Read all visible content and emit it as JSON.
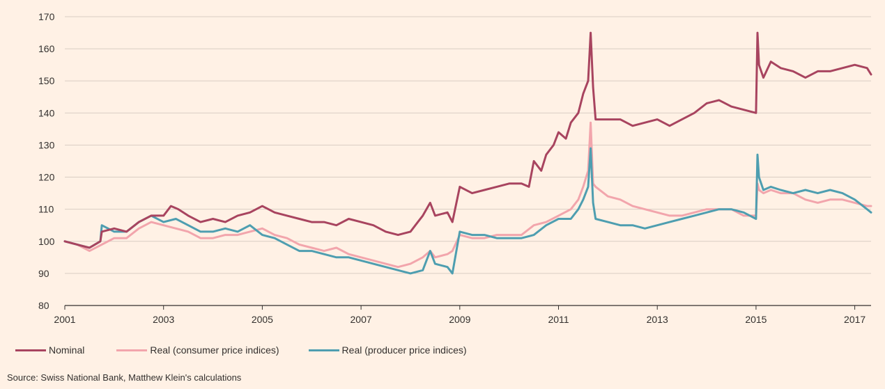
{
  "chart_data": {
    "type": "line",
    "title": "",
    "xlabel": "",
    "ylabel": "",
    "ylim": [
      80,
      170
    ],
    "xlim": [
      2001.0,
      2017.33
    ],
    "y_ticks": [
      80,
      90,
      100,
      110,
      120,
      130,
      140,
      150,
      160,
      170
    ],
    "x_ticks": [
      2001,
      2003,
      2005,
      2007,
      2009,
      2011,
      2013,
      2015,
      2017
    ],
    "grid": "horizontal",
    "legend": "bottom-left",
    "source": "Source: Swiss National Bank, Matthew Klein's calculations",
    "series": [
      {
        "name": "Nominal",
        "color": "#a8445f",
        "x": [
          2001.0,
          2001.25,
          2001.5,
          2001.72,
          2001.75,
          2002.0,
          2002.25,
          2002.5,
          2002.75,
          2003.0,
          2003.15,
          2003.3,
          2003.5,
          2003.75,
          2004.0,
          2004.25,
          2004.5,
          2004.75,
          2005.0,
          2005.25,
          2005.5,
          2005.75,
          2006.0,
          2006.25,
          2006.5,
          2006.75,
          2007.0,
          2007.25,
          2007.5,
          2007.75,
          2008.0,
          2008.15,
          2008.25,
          2008.4,
          2008.5,
          2008.75,
          2008.85,
          2009.0,
          2009.25,
          2009.5,
          2009.75,
          2010.0,
          2010.25,
          2010.4,
          2010.5,
          2010.65,
          2010.75,
          2010.9,
          2011.0,
          2011.15,
          2011.25,
          2011.4,
          2011.5,
          2011.6,
          2011.65,
          2011.7,
          2011.75,
          2012.0,
          2012.25,
          2012.5,
          2012.75,
          2013.0,
          2013.25,
          2013.5,
          2013.75,
          2014.0,
          2014.25,
          2014.5,
          2014.75,
          2015.0,
          2015.03,
          2015.06,
          2015.15,
          2015.3,
          2015.5,
          2015.75,
          2016.0,
          2016.25,
          2016.5,
          2016.75,
          2017.0,
          2017.25,
          2017.33
        ],
        "y": [
          100,
          99,
          98,
          100,
          103,
          104,
          103,
          106,
          108,
          108,
          111,
          110,
          108,
          106,
          107,
          106,
          108,
          109,
          111,
          109,
          108,
          107,
          106,
          106,
          105,
          107,
          106,
          105,
          103,
          102,
          103,
          106,
          108,
          112,
          108,
          109,
          106,
          117,
          115,
          116,
          117,
          118,
          118,
          117,
          125,
          122,
          127,
          130,
          134,
          132,
          137,
          140,
          146,
          150,
          165,
          148,
          138,
          138,
          138,
          136,
          137,
          138,
          136,
          138,
          140,
          143,
          144,
          142,
          141,
          140,
          165,
          155,
          151,
          156,
          154,
          153,
          151,
          153,
          153,
          154,
          155,
          154,
          152
        ]
      },
      {
        "name": "Real (consumer price indices)",
        "color": "#f2a5ac",
        "x": [
          2001.0,
          2001.25,
          2001.5,
          2001.75,
          2002.0,
          2002.25,
          2002.5,
          2002.75,
          2003.0,
          2003.25,
          2003.5,
          2003.75,
          2004.0,
          2004.25,
          2004.5,
          2004.75,
          2005.0,
          2005.25,
          2005.5,
          2005.75,
          2006.0,
          2006.25,
          2006.5,
          2006.75,
          2007.0,
          2007.25,
          2007.5,
          2007.75,
          2008.0,
          2008.25,
          2008.4,
          2008.5,
          2008.75,
          2008.85,
          2009.0,
          2009.25,
          2009.5,
          2009.75,
          2010.0,
          2010.25,
          2010.5,
          2010.75,
          2011.0,
          2011.25,
          2011.4,
          2011.5,
          2011.6,
          2011.65,
          2011.7,
          2011.75,
          2012.0,
          2012.25,
          2012.5,
          2012.75,
          2013.0,
          2013.25,
          2013.5,
          2013.75,
          2014.0,
          2014.25,
          2014.5,
          2014.75,
          2015.0,
          2015.03,
          2015.06,
          2015.15,
          2015.3,
          2015.5,
          2015.75,
          2016.0,
          2016.25,
          2016.5,
          2016.75,
          2017.0,
          2017.25,
          2017.33
        ],
        "y": [
          100,
          99,
          97,
          99,
          101,
          101,
          104,
          106,
          105,
          104,
          103,
          101,
          101,
          102,
          102,
          103,
          104,
          102,
          101,
          99,
          98,
          97,
          98,
          96,
          95,
          94,
          93,
          92,
          93,
          95,
          97,
          95,
          96,
          97,
          102,
          101,
          101,
          102,
          102,
          102,
          105,
          106,
          108,
          110,
          113,
          117,
          122,
          137,
          118,
          117,
          114,
          113,
          111,
          110,
          109,
          108,
          108,
          109,
          110,
          110,
          110,
          108,
          108,
          118,
          116,
          115,
          116,
          115,
          115,
          113,
          112,
          113,
          113,
          112,
          111,
          111
        ]
      },
      {
        "name": "Real (producer price indices)",
        "color": "#4e9eb0",
        "x": [
          2001.0,
          2001.25,
          2001.5,
          2001.72,
          2001.75,
          2002.0,
          2002.25,
          2002.5,
          2002.75,
          2003.0,
          2003.25,
          2003.5,
          2003.75,
          2004.0,
          2004.25,
          2004.5,
          2004.75,
          2005.0,
          2005.25,
          2005.5,
          2005.75,
          2006.0,
          2006.25,
          2006.5,
          2006.75,
          2007.0,
          2007.25,
          2007.5,
          2007.75,
          2008.0,
          2008.25,
          2008.4,
          2008.5,
          2008.75,
          2008.85,
          2009.0,
          2009.25,
          2009.5,
          2009.75,
          2010.0,
          2010.25,
          2010.5,
          2010.75,
          2011.0,
          2011.25,
          2011.4,
          2011.5,
          2011.6,
          2011.65,
          2011.7,
          2011.75,
          2012.0,
          2012.25,
          2012.5,
          2012.75,
          2013.0,
          2013.25,
          2013.5,
          2013.75,
          2014.0,
          2014.25,
          2014.5,
          2014.75,
          2015.0,
          2015.03,
          2015.06,
          2015.15,
          2015.3,
          2015.5,
          2015.75,
          2016.0,
          2016.25,
          2016.5,
          2016.75,
          2017.0,
          2017.25,
          2017.33
        ],
        "y": [
          100,
          99,
          98,
          100,
          105,
          103,
          103,
          106,
          108,
          106,
          107,
          105,
          103,
          103,
          104,
          103,
          105,
          102,
          101,
          99,
          97,
          97,
          96,
          95,
          95,
          94,
          93,
          92,
          91,
          90,
          91,
          97,
          93,
          92,
          90,
          103,
          102,
          102,
          101,
          101,
          101,
          102,
          105,
          107,
          107,
          110,
          113,
          117,
          129,
          112,
          107,
          106,
          105,
          105,
          104,
          105,
          106,
          107,
          108,
          109,
          110,
          110,
          109,
          107,
          127,
          120,
          116,
          117,
          116,
          115,
          116,
          115,
          116,
          115,
          113,
          110,
          109
        ]
      }
    ]
  }
}
